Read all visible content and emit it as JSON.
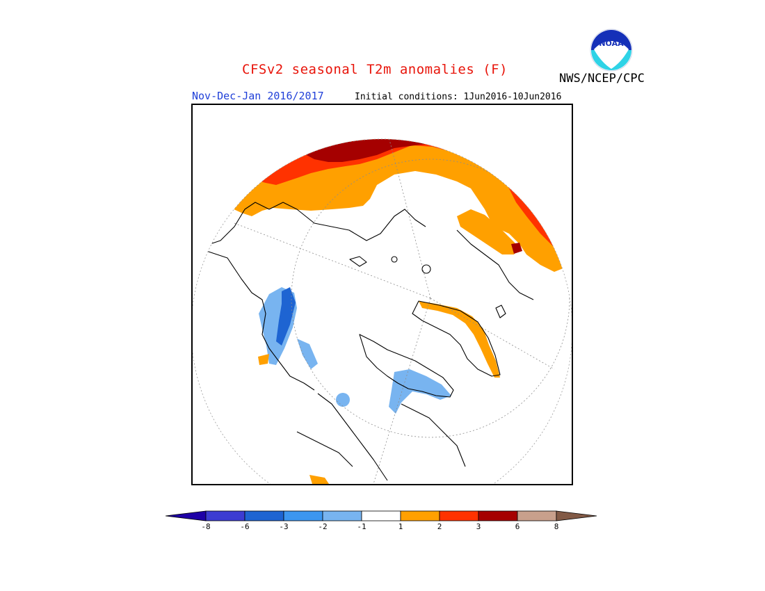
{
  "header": {
    "title": "CFSv2 seasonal T2m anomalies (F)",
    "agency": "NWS/NCEP/CPC",
    "period": "Nov-Dec-Jan 2016/2017",
    "initial_conditions": "Initial conditions: 1Jun2016-10Jun2016",
    "logo_text": "NOAA"
  },
  "map": {
    "projection": "north-polar-stereographic",
    "land_outline_color": "#000000",
    "background": "#ffffff"
  },
  "legend": {
    "colors": [
      "#1e00a6",
      "#3c3cd2",
      "#1e64d2",
      "#3c96f0",
      "#78b4f0",
      "#ffffff",
      "#ffa000",
      "#ff3200",
      "#a50000",
      "#c8a08c",
      "#825a46"
    ],
    "tick_labels": [
      "-8",
      "-6",
      "-3",
      "-2",
      "-1",
      "1",
      "2",
      "3",
      "6",
      "8"
    ]
  }
}
